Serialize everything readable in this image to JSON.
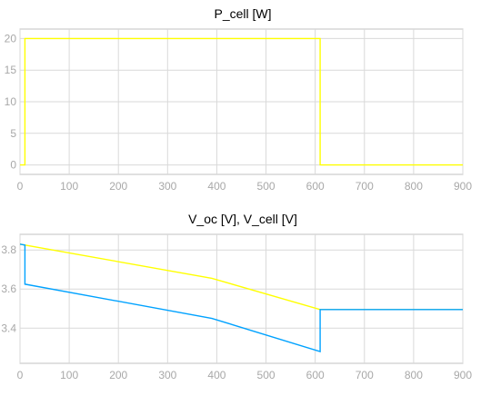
{
  "chart_data": [
    {
      "type": "line",
      "title": "P_cell [W]",
      "xlabel": "",
      "ylabel": "",
      "xlim": [
        0,
        900
      ],
      "ylim": [
        -1.5,
        21.5
      ],
      "x_ticks": [
        0,
        100,
        200,
        300,
        400,
        500,
        600,
        700,
        800,
        900
      ],
      "y_ticks": [
        0,
        5,
        10,
        15,
        20
      ],
      "grid": true,
      "series": [
        {
          "color": "#ffff00",
          "x": [
            0,
            10,
            10,
            610,
            610,
            900
          ],
          "y": [
            0,
            0,
            20,
            20,
            0,
            0
          ]
        }
      ]
    },
    {
      "type": "line",
      "title": "V_oc [V], V_cell [V]",
      "xlabel": "",
      "ylabel": "",
      "xlim": [
        0,
        900
      ],
      "ylim": [
        3.22,
        3.88
      ],
      "x_ticks": [
        0,
        100,
        200,
        300,
        400,
        500,
        600,
        700,
        800,
        900
      ],
      "y_ticks": [
        3.4,
        3.6,
        3.8
      ],
      "y_tick_labels": [
        "3.4",
        "3.6",
        "3.8"
      ],
      "grid": true,
      "series": [
        {
          "color": "#ffff00",
          "x": [
            0,
            10,
            390,
            610,
            610,
            900
          ],
          "y": [
            3.83,
            3.825,
            3.655,
            3.495,
            3.495,
            3.495
          ]
        },
        {
          "color": "#00a2ff",
          "x": [
            0,
            10,
            10,
            390,
            610,
            610,
            900
          ],
          "y": [
            3.83,
            3.825,
            3.625,
            3.45,
            3.28,
            3.495,
            3.495
          ]
        }
      ]
    }
  ],
  "colors": {
    "axis_text": "#a8a8a8",
    "title_text": "#000000",
    "grid": "#d9d9d9",
    "frame": "#c0c0c0"
  }
}
